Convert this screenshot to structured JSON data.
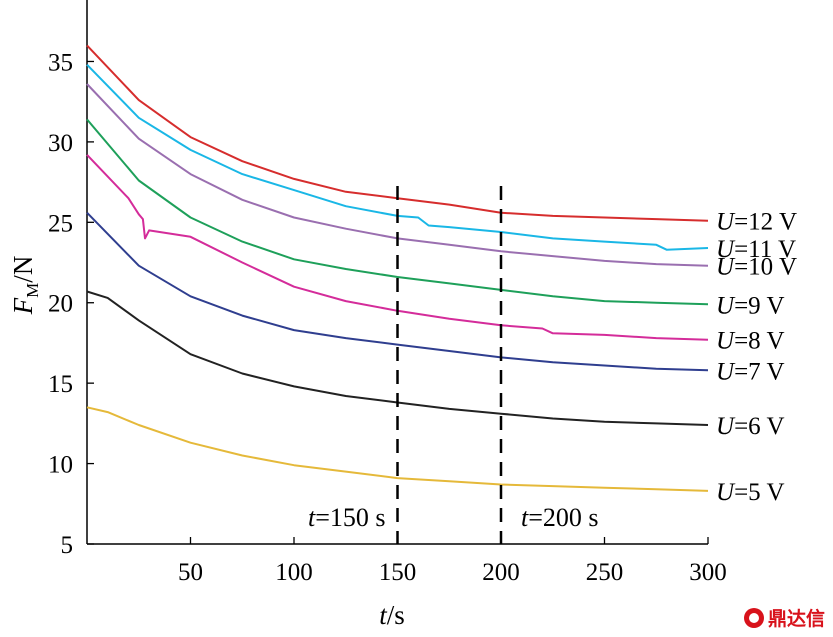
{
  "chart_data": {
    "type": "line",
    "xlabel": {
      "main": "t",
      "unit": "/s"
    },
    "ylabel": {
      "main": "F",
      "sub": "M",
      "unit": "/N"
    },
    "xlim": [
      0,
      300
    ],
    "ylim": [
      5,
      38
    ],
    "xticks": [
      50,
      100,
      150,
      200,
      250,
      300
    ],
    "yticks": [
      5,
      10,
      15,
      20,
      25,
      30,
      35
    ],
    "grid": false,
    "series": [
      {
        "name": "U=12 V",
        "label_var": "U",
        "label_rest": "=12 V",
        "color": "#d62d2d",
        "x": [
          0,
          25,
          50,
          75,
          100,
          125,
          150,
          175,
          200,
          225,
          250,
          275,
          300
        ],
        "y": [
          36.0,
          32.6,
          30.3,
          28.8,
          27.7,
          26.9,
          26.5,
          26.1,
          25.6,
          25.4,
          25.3,
          25.2,
          25.1
        ]
      },
      {
        "name": "U=11 V",
        "label_var": "U",
        "label_rest": "=11 V",
        "color": "#1ab7e6",
        "x": [
          0,
          25,
          50,
          75,
          100,
          125,
          150,
          160,
          165,
          175,
          200,
          225,
          250,
          275,
          280,
          300
        ],
        "y": [
          34.8,
          31.5,
          29.5,
          28.0,
          27.0,
          26.0,
          25.4,
          25.3,
          24.8,
          24.7,
          24.4,
          24.0,
          23.8,
          23.6,
          23.3,
          23.4
        ]
      },
      {
        "name": "U=10 V",
        "label_var": "U",
        "label_rest": "=10 V",
        "color": "#9a6fb0",
        "x": [
          0,
          25,
          50,
          75,
          100,
          125,
          150,
          175,
          200,
          225,
          250,
          275,
          300
        ],
        "y": [
          33.6,
          30.2,
          28.0,
          26.4,
          25.3,
          24.6,
          24.0,
          23.6,
          23.2,
          22.9,
          22.6,
          22.4,
          22.3
        ]
      },
      {
        "name": "U=9 V",
        "label_var": "U",
        "label_rest": "=9 V",
        "color": "#1ea05a",
        "x": [
          0,
          25,
          50,
          75,
          100,
          125,
          150,
          175,
          200,
          225,
          250,
          275,
          300
        ],
        "y": [
          31.4,
          27.6,
          25.3,
          23.8,
          22.7,
          22.1,
          21.6,
          21.2,
          20.8,
          20.4,
          20.1,
          20.0,
          19.9
        ]
      },
      {
        "name": "U=8 V",
        "label_var": "U",
        "label_rest": "=8 V",
        "color": "#d42c9a",
        "x": [
          0,
          20,
          25,
          27,
          28,
          30,
          50,
          75,
          100,
          125,
          150,
          175,
          200,
          220,
          225,
          250,
          275,
          300
        ],
        "y": [
          29.2,
          26.5,
          25.5,
          25.2,
          24.0,
          24.5,
          24.1,
          22.5,
          21.0,
          20.1,
          19.5,
          19.0,
          18.6,
          18.4,
          18.1,
          18.0,
          17.8,
          17.7
        ]
      },
      {
        "name": "U=7 V",
        "label_var": "U",
        "label_rest": "=7 V",
        "color": "#2f3e8f",
        "x": [
          0,
          25,
          50,
          75,
          100,
          125,
          150,
          175,
          200,
          225,
          250,
          275,
          300
        ],
        "y": [
          25.6,
          22.3,
          20.4,
          19.2,
          18.3,
          17.8,
          17.4,
          17.0,
          16.6,
          16.3,
          16.1,
          15.9,
          15.8
        ]
      },
      {
        "name": "U=6 V",
        "label_var": "U",
        "label_rest": "=6 V",
        "color": "#222222",
        "x": [
          0,
          10,
          25,
          50,
          75,
          100,
          125,
          150,
          175,
          200,
          225,
          250,
          275,
          300
        ],
        "y": [
          20.7,
          20.3,
          18.9,
          16.8,
          15.6,
          14.8,
          14.2,
          13.8,
          13.4,
          13.1,
          12.8,
          12.6,
          12.5,
          12.4
        ]
      },
      {
        "name": "U=5 V",
        "label_var": "U",
        "label_rest": "=5 V",
        "color": "#e5b93a",
        "x": [
          0,
          10,
          25,
          50,
          75,
          100,
          125,
          150,
          175,
          200,
          225,
          250,
          275,
          300
        ],
        "y": [
          13.5,
          13.2,
          12.4,
          11.3,
          10.5,
          9.9,
          9.5,
          9.1,
          8.9,
          8.7,
          8.6,
          8.5,
          8.4,
          8.3
        ]
      }
    ],
    "annotations": [
      {
        "x": 150,
        "var": "t",
        "text": "=150 s"
      },
      {
        "x": 200,
        "var": "t",
        "text": "=200 s"
      }
    ]
  },
  "watermark": {
    "text": "鼎达信",
    "color": "#d8121b"
  }
}
